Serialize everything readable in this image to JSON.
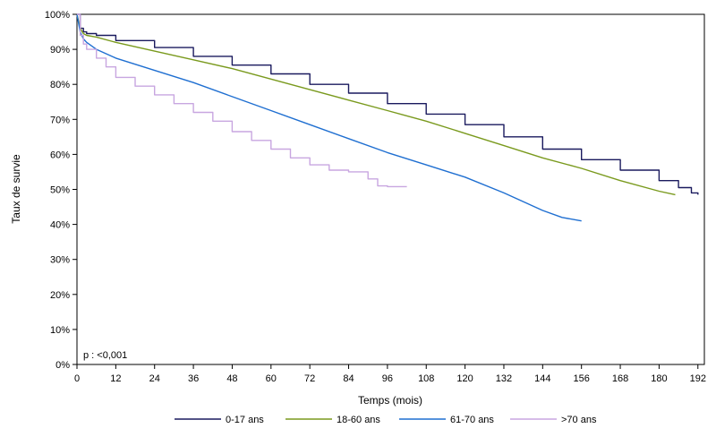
{
  "chart_data": {
    "type": "line",
    "title": "",
    "xlabel": "Temps (mois)",
    "ylabel": "Taux de survie",
    "xlim": [
      0,
      194
    ],
    "ylim": [
      0,
      100
    ],
    "x_ticks": [
      0,
      12,
      24,
      36,
      48,
      60,
      72,
      84,
      96,
      108,
      120,
      132,
      144,
      156,
      168,
      180,
      192
    ],
    "y_ticks": [
      0,
      10,
      20,
      30,
      40,
      50,
      60,
      70,
      80,
      90,
      100
    ],
    "y_tick_labels": [
      "0%",
      "10%",
      "20%",
      "30%",
      "40%",
      "50%",
      "60%",
      "70%",
      "80%",
      "90%",
      "100%"
    ],
    "grid": false,
    "legend_position": "bottom",
    "annotation": "p : <0,001",
    "series": [
      {
        "name": "0-17 ans",
        "color": "#1a1a5e",
        "step": true,
        "points": [
          [
            0,
            100
          ],
          [
            1,
            96
          ],
          [
            2,
            95
          ],
          [
            3,
            94.5
          ],
          [
            6,
            94
          ],
          [
            12,
            92.5
          ],
          [
            24,
            90.5
          ],
          [
            36,
            88
          ],
          [
            48,
            85.5
          ],
          [
            60,
            83
          ],
          [
            72,
            80
          ],
          [
            84,
            77.5
          ],
          [
            96,
            74.5
          ],
          [
            108,
            71.5
          ],
          [
            120,
            68.5
          ],
          [
            132,
            65
          ],
          [
            144,
            61.5
          ],
          [
            156,
            58.5
          ],
          [
            168,
            55.5
          ],
          [
            180,
            52.5
          ],
          [
            186,
            50.5
          ],
          [
            190,
            49
          ],
          [
            192,
            48.5
          ]
        ]
      },
      {
        "name": "18-60 ans",
        "color": "#7a9a1e",
        "step": false,
        "points": [
          [
            0,
            100
          ],
          [
            1,
            96
          ],
          [
            2,
            94.5
          ],
          [
            3,
            94
          ],
          [
            6,
            93.5
          ],
          [
            12,
            92
          ],
          [
            24,
            89.5
          ],
          [
            36,
            87
          ],
          [
            48,
            84.5
          ],
          [
            60,
            81.5
          ],
          [
            72,
            78.5
          ],
          [
            84,
            75.5
          ],
          [
            96,
            72.5
          ],
          [
            108,
            69.5
          ],
          [
            120,
            66
          ],
          [
            132,
            62.5
          ],
          [
            144,
            59
          ],
          [
            156,
            56
          ],
          [
            168,
            52.5
          ],
          [
            180,
            49.5
          ],
          [
            185,
            48.5
          ]
        ]
      },
      {
        "name": "61-70 ans",
        "color": "#1f6fd1",
        "step": false,
        "points": [
          [
            0,
            100
          ],
          [
            1,
            95
          ],
          [
            2,
            93
          ],
          [
            3,
            92
          ],
          [
            6,
            90
          ],
          [
            12,
            87.5
          ],
          [
            24,
            84
          ],
          [
            36,
            80.5
          ],
          [
            48,
            76.5
          ],
          [
            60,
            72.5
          ],
          [
            72,
            68.5
          ],
          [
            84,
            64.5
          ],
          [
            96,
            60.5
          ],
          [
            108,
            57
          ],
          [
            120,
            53.5
          ],
          [
            132,
            49
          ],
          [
            144,
            44
          ],
          [
            150,
            42
          ],
          [
            156,
            41
          ]
        ]
      },
      {
        "name": ">70 ans",
        "color": "#c8a6e0",
        "step": true,
        "points": [
          [
            0,
            100
          ],
          [
            1,
            94
          ],
          [
            2,
            91.5
          ],
          [
            3,
            90
          ],
          [
            6,
            87.5
          ],
          [
            9,
            85
          ],
          [
            12,
            82
          ],
          [
            18,
            79.5
          ],
          [
            24,
            77
          ],
          [
            30,
            74.5
          ],
          [
            36,
            72
          ],
          [
            42,
            69.5
          ],
          [
            48,
            66.5
          ],
          [
            54,
            64
          ],
          [
            60,
            61.5
          ],
          [
            66,
            59
          ],
          [
            72,
            57
          ],
          [
            78,
            55.5
          ],
          [
            84,
            55
          ],
          [
            90,
            53
          ],
          [
            93,
            51
          ],
          [
            96,
            50.8
          ],
          [
            102,
            50.8
          ]
        ]
      }
    ]
  }
}
